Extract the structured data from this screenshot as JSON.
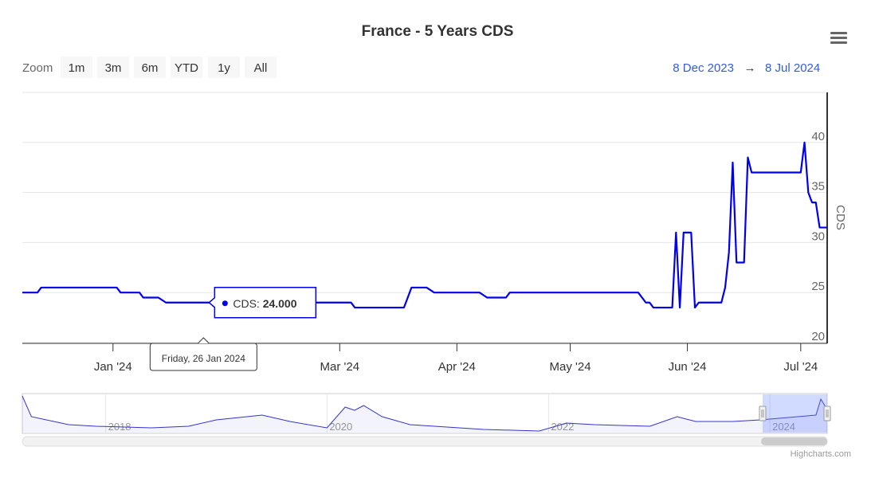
{
  "chart_data": {
    "type": "line",
    "title": "France - 5 Years CDS",
    "zoom_label": "Zoom",
    "range_buttons": [
      "1m",
      "3m",
      "6m",
      "YTD",
      "1y",
      "All"
    ],
    "range_from": "8 Dec 2023",
    "range_arrow": "→",
    "range_to": "8 Jul 2024",
    "y_label": "CDS",
    "x": [
      "2023-12-08",
      "2023-12-12",
      "2023-12-13",
      "2024-01-02",
      "2024-01-03",
      "2024-01-08",
      "2024-01-09",
      "2024-01-13",
      "2024-01-15",
      "2024-03-04",
      "2024-03-05",
      "2024-03-18",
      "2024-03-20",
      "2024-03-24",
      "2024-03-26",
      "2024-04-07",
      "2024-04-09",
      "2024-04-14",
      "2024-04-15",
      "2024-05-19",
      "2024-05-21",
      "2024-05-22",
      "2024-05-23",
      "2024-05-28",
      "2024-05-29",
      "2024-05-30",
      "2024-05-31",
      "2024-06-02",
      "2024-06-03",
      "2024-06-04",
      "2024-06-10",
      "2024-06-11",
      "2024-06-12",
      "2024-06-13",
      "2024-06-14",
      "2024-06-16",
      "2024-06-17",
      "2024-06-18",
      "2024-07-01",
      "2024-07-02",
      "2024-07-03",
      "2024-07-04",
      "2024-07-05",
      "2024-07-06",
      "2024-07-08"
    ],
    "series": [
      {
        "name": "CDS",
        "color": "#0000ee",
        "values": [
          25,
          25,
          25.5,
          25.5,
          25,
          25,
          24.5,
          24.5,
          24,
          24,
          23.5,
          23.5,
          25.5,
          25.5,
          25,
          25,
          24.5,
          24.5,
          25,
          25,
          24,
          24,
          23.5,
          23.5,
          31,
          23.5,
          31,
          31,
          23.5,
          24,
          24,
          25.5,
          29,
          38,
          28,
          28,
          38.5,
          37,
          37,
          40,
          35,
          34,
          34,
          31.5,
          31.5
        ]
      }
    ],
    "xlim": [
      "2023-12-08",
      "2024-07-08"
    ],
    "xticks": [
      {
        "value": "2024-01-01",
        "label": "Jan '24"
      },
      {
        "value": "2024-03-01",
        "label": "Mar '24"
      },
      {
        "value": "2024-04-01",
        "label": "Apr '24"
      },
      {
        "value": "2024-05-01",
        "label": "May '24"
      },
      {
        "value": "2024-06-01",
        "label": "Jun '24"
      },
      {
        "value": "2024-07-01",
        "label": "Jul '24"
      }
    ],
    "ylim": [
      20,
      45
    ],
    "yticks": [
      20,
      25,
      30,
      35,
      40
    ],
    "grid": true,
    "tooltip": {
      "x": "2024-01-26",
      "x_label": "Friday, 26 Jan 2024",
      "value": 24,
      "value_label": "24.000"
    },
    "navigator": {
      "color": "#3333cc",
      "x": [
        "2017-04",
        "2017-05",
        "2017-09",
        "2017-12",
        "2018-06",
        "2018-10",
        "2019-01",
        "2019-06",
        "2019-09",
        "2020-01",
        "2020-03",
        "2020-04",
        "2020-05",
        "2020-07",
        "2020-10",
        "2021-06",
        "2021-12",
        "2022-03",
        "2022-06",
        "2022-12",
        "2023-03",
        "2023-05",
        "2023-09",
        "2023-12",
        "2024-06",
        "2024-06-17",
        "2024-07-08"
      ],
      "values": [
        40,
        27,
        22,
        21,
        20,
        21,
        25,
        28,
        24,
        20,
        33,
        31,
        34,
        27,
        22,
        19,
        18,
        23,
        22,
        21,
        27,
        24,
        24,
        25,
        28,
        38,
        31.5
      ],
      "xlim": [
        "2017-04",
        "2024-07-08"
      ],
      "ylim": [
        17,
        41
      ],
      "xticks": [
        {
          "value": "2018-01",
          "label": "2018"
        },
        {
          "value": "2020-01",
          "label": "2020"
        },
        {
          "value": "2022-01",
          "label": "2022"
        },
        {
          "value": "2024-01",
          "label": "2024"
        }
      ]
    },
    "credits": "Highcharts.com"
  }
}
